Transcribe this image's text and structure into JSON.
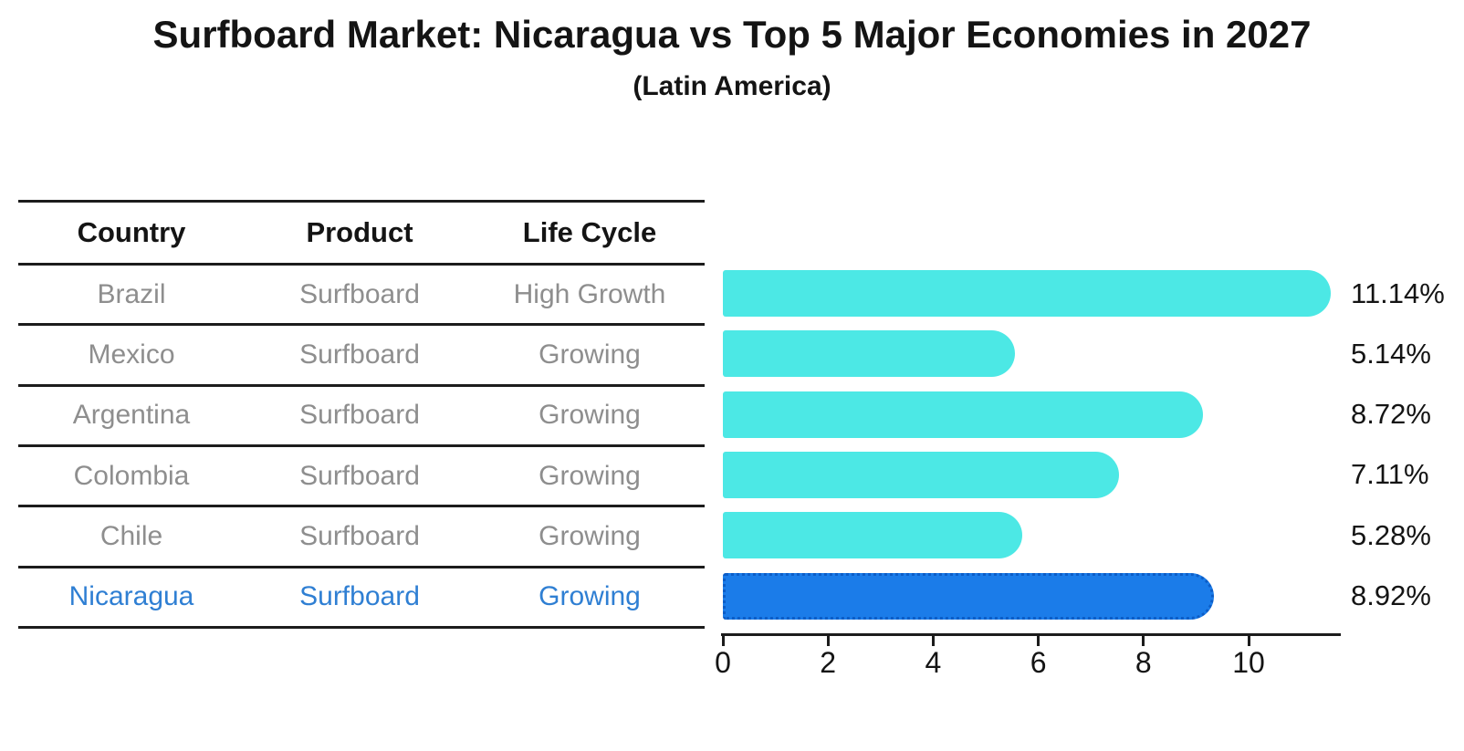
{
  "title": "Surfboard Market: Nicaragua vs Top 5 Major Economies in 2027",
  "subtitle": "(Latin America)",
  "table": {
    "headers": [
      "Country",
      "Product",
      "Life Cycle"
    ],
    "rows": [
      {
        "country": "Brazil",
        "product": "Surfboard",
        "life_cycle": "High Growth",
        "highlighted": false
      },
      {
        "country": "Mexico",
        "product": "Surfboard",
        "life_cycle": "Growing",
        "highlighted": false
      },
      {
        "country": "Argentina",
        "product": "Surfboard",
        "life_cycle": "Growing",
        "highlighted": false
      },
      {
        "country": "Colombia",
        "product": "Surfboard",
        "life_cycle": "Growing",
        "highlighted": false
      },
      {
        "country": "Chile",
        "product": "Surfboard",
        "life_cycle": "Growing",
        "highlighted": false
      },
      {
        "country": "Nicaragua",
        "product": "Surfboard",
        "life_cycle": "Growing",
        "highlighted": true
      }
    ]
  },
  "chart_data": {
    "type": "bar",
    "orientation": "horizontal",
    "title": "Surfboard Market: Nicaragua vs Top 5 Major Economies in 2027",
    "subtitle": "(Latin America)",
    "categories": [
      "Brazil",
      "Mexico",
      "Argentina",
      "Colombia",
      "Chile",
      "Nicaragua"
    ],
    "values": [
      11.14,
      5.14,
      8.72,
      7.11,
      5.28,
      8.92
    ],
    "value_labels": [
      "11.14%",
      "5.14%",
      "8.72%",
      "7.11%",
      "5.28%",
      "8.92%"
    ],
    "xlabel": "",
    "ylabel": "",
    "xlim": [
      0,
      11.7
    ],
    "xticks": [
      0,
      2,
      4,
      6,
      8,
      10
    ],
    "grid": false,
    "legend": false,
    "highlight_category": "Nicaragua",
    "bar_color": "#4ce8e5",
    "highlight_color": "#1b7ce9",
    "highlight_border_color": "#0c5dc7",
    "highlight_text_color": "#2f7fd3",
    "table_text_color": "#8e8e8e"
  }
}
